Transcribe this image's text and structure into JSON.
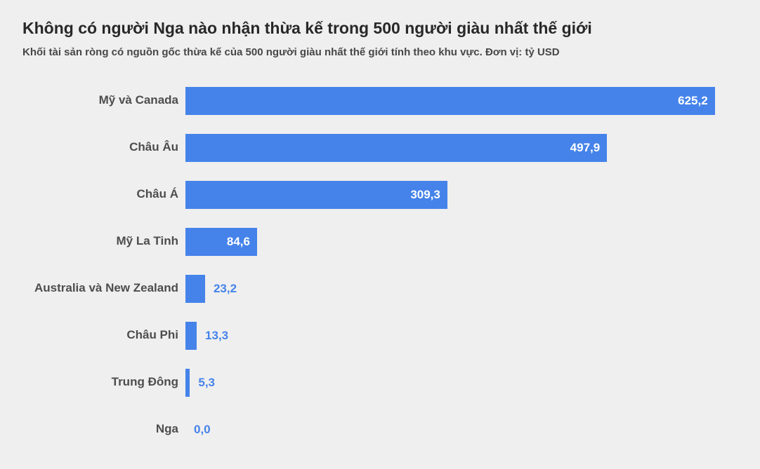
{
  "header": {
    "title": "Không có người Nga nào nhận thừa kế trong 500 người giàu nhất thế giới",
    "subtitle": "Khối tài sản ròng có nguồn gốc thừa kế của 500 người giàu nhất thế giới tính theo khu vực. Đơn vị: tỷ USD"
  },
  "colors": {
    "bar": "#4583ea",
    "background": "#efefef",
    "value_inside": "#ffffff",
    "value_outside": "#4583ea",
    "category_label": "#4d4d4d"
  },
  "chart_data": {
    "type": "bar",
    "orientation": "horizontal",
    "title": "Không có người Nga nào nhận thừa kế trong 500 người giàu nhất thế giới",
    "subtitle": "Khối tài sản ròng có nguồn gốc thừa kế của 500 người giàu nhất thế giới tính theo khu vực. Đơn vị: tỷ USD",
    "unit": "tỷ USD",
    "categories": [
      "Mỹ và Canada",
      "Châu Âu",
      "Châu Á",
      "Mỹ La Tinh",
      "Australia và New Zealand",
      "Châu Phi",
      "Trung Đông",
      "Nga"
    ],
    "values": [
      625.2,
      497.9,
      309.3,
      84.6,
      23.2,
      13.3,
      5.3,
      0.0
    ],
    "value_labels": [
      "625,2",
      "497,9",
      "309,3",
      "84,6",
      "23,2",
      "13,3",
      "5,3",
      "0,0"
    ],
    "xlim": [
      0,
      652
    ],
    "grid": false,
    "legend": false
  }
}
